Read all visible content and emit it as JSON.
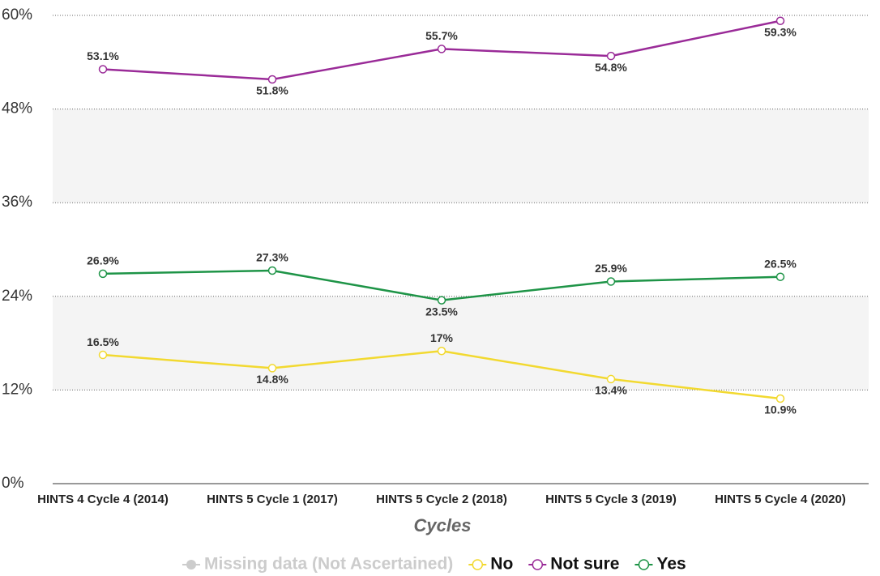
{
  "chart_data": {
    "type": "line",
    "x_label": "Cycles",
    "categories": [
      "HINTS 4 Cycle 4 (2014)",
      "HINTS 5 Cycle 1 (2017)",
      "HINTS 5 Cycle 2 (2018)",
      "HINTS 5 Cycle 3 (2019)",
      "HINTS 5 Cycle 4 (2020)"
    ],
    "series": [
      {
        "name": "No",
        "color": "#f2d930",
        "values": [
          16.5,
          14.8,
          17,
          13.4,
          10.9
        ],
        "value_labels": [
          "16.5%",
          "14.8%",
          "17%",
          "13.4%",
          "10.9%"
        ]
      },
      {
        "name": "Not sure",
        "color": "#9a2b98",
        "values": [
          53.1,
          51.8,
          55.7,
          54.8,
          59.3
        ],
        "value_labels": [
          "53.1%",
          "51.8%",
          "55.7%",
          "54.8%",
          "59.3%"
        ]
      },
      {
        "name": "Yes",
        "color": "#1e9447",
        "values": [
          26.9,
          27.3,
          23.5,
          25.9,
          26.5
        ],
        "value_labels": [
          "26.9%",
          "27.3%",
          "23.5%",
          "25.9%",
          "26.5%"
        ]
      }
    ],
    "missing_legend": {
      "name": "Missing data (Not Ascertained)",
      "color": "#cccccc"
    },
    "ylim": [
      0,
      60
    ],
    "yticks": [
      {
        "value": 0,
        "label": "0%"
      },
      {
        "value": 12,
        "label": "12%"
      },
      {
        "value": 24,
        "label": "24%"
      },
      {
        "value": 36,
        "label": "36%"
      },
      {
        "value": 48,
        "label": "48%"
      },
      {
        "value": 60,
        "label": "60%"
      }
    ],
    "grid": true
  }
}
